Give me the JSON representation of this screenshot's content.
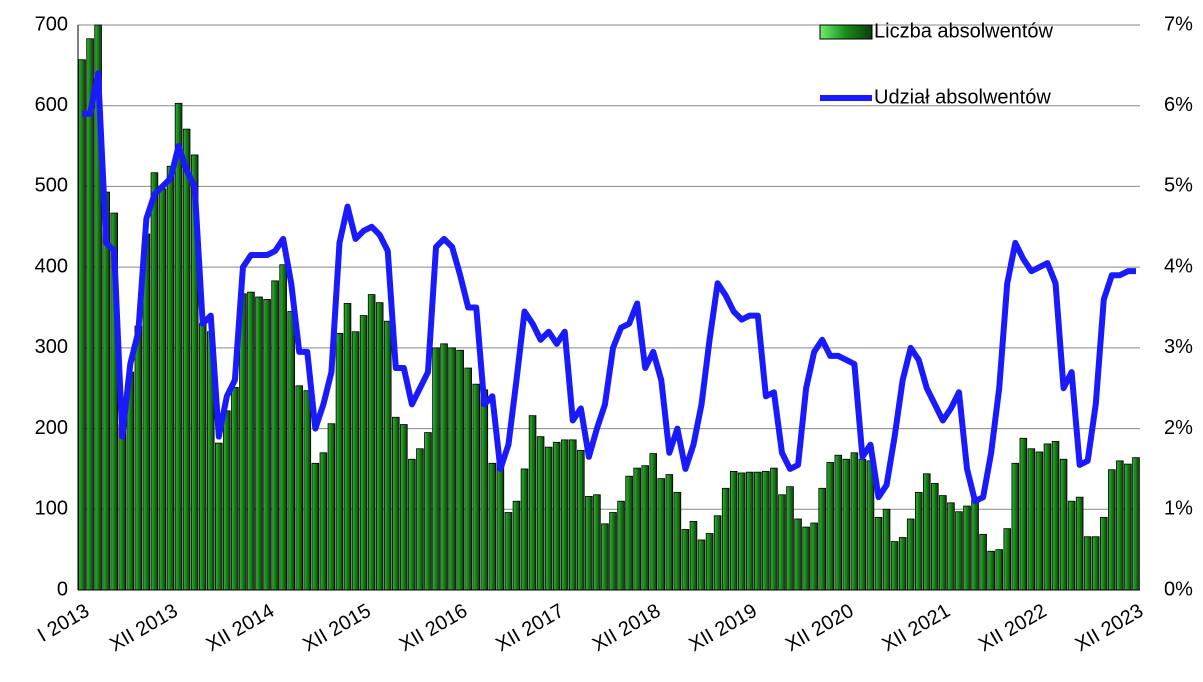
{
  "chart_data": {
    "type": "bar-line",
    "categories": [
      "I 2013",
      null,
      null,
      null,
      null,
      null,
      null,
      null,
      null,
      null,
      null,
      "XII 2013",
      null,
      null,
      null,
      null,
      null,
      null,
      null,
      null,
      null,
      null,
      null,
      "XII 2014",
      null,
      null,
      null,
      null,
      null,
      null,
      null,
      null,
      null,
      null,
      null,
      "XII 2015",
      null,
      null,
      null,
      null,
      null,
      null,
      null,
      null,
      null,
      null,
      null,
      "XII 2016",
      null,
      null,
      null,
      null,
      null,
      null,
      null,
      null,
      null,
      null,
      null,
      "XII 2017",
      null,
      null,
      null,
      null,
      null,
      null,
      null,
      null,
      null,
      null,
      null,
      "XII 2018",
      null,
      null,
      null,
      null,
      null,
      null,
      null,
      null,
      null,
      null,
      null,
      "XII 2019",
      null,
      null,
      null,
      null,
      null,
      null,
      null,
      null,
      null,
      null,
      null,
      "XII 2020",
      null,
      null,
      null,
      null,
      null,
      null,
      null,
      null,
      null,
      null,
      null,
      "XII 2021",
      null,
      null,
      null,
      null,
      null,
      null,
      null,
      null,
      null,
      null,
      null,
      "XII 2022",
      null,
      null,
      null,
      null,
      null,
      null,
      null,
      null,
      null,
      null,
      null,
      "XII 2023"
    ],
    "series": [
      {
        "name": "Liczba absolwentów",
        "type": "bar",
        "color": "#1a8a1a",
        "values": [
          657,
          683,
          700,
          493,
          467,
          205,
          270,
          327,
          441,
          517,
          497,
          525,
          603,
          571,
          539,
          330,
          320,
          182,
          222,
          251,
          367,
          369,
          363,
          360,
          383,
          403,
          345,
          253,
          247,
          157,
          170,
          206,
          318,
          355,
          320,
          340,
          366,
          356,
          333,
          214,
          205,
          162,
          175,
          195,
          300,
          305,
          300,
          297,
          275,
          255,
          248,
          157,
          160,
          96,
          110,
          150,
          216,
          190,
          177,
          183,
          186,
          186,
          173,
          116,
          118,
          82,
          96,
          110,
          141,
          151,
          154,
          169,
          138,
          143,
          121,
          75,
          85,
          62,
          70,
          92,
          126,
          147,
          145,
          146,
          146,
          147,
          151,
          118,
          128,
          88,
          78,
          83,
          126,
          158,
          167,
          162,
          170,
          162,
          160,
          90,
          100,
          60,
          65,
          88,
          121,
          144,
          132,
          117,
          108,
          97,
          104,
          112,
          69,
          48,
          50,
          76,
          157,
          188,
          175,
          171,
          181,
          184,
          162,
          110,
          115,
          66,
          66,
          90,
          149,
          160,
          156,
          164
        ]
      },
      {
        "name": "Udział absolwentów",
        "type": "line",
        "axis": "y2",
        "color": "#1a1aff",
        "values": [
          5.9,
          5.9,
          6.4,
          4.3,
          4.2,
          1.9,
          2.8,
          3.2,
          4.6,
          4.9,
          5.0,
          5.1,
          5.5,
          5.2,
          5.0,
          3.3,
          3.4,
          1.9,
          2.4,
          2.6,
          4.0,
          4.15,
          4.15,
          4.15,
          4.2,
          4.35,
          3.8,
          2.95,
          2.95,
          2.0,
          2.3,
          2.7,
          4.3,
          4.75,
          4.35,
          4.45,
          4.5,
          4.4,
          4.2,
          2.75,
          2.75,
          2.3,
          2.5,
          2.7,
          4.25,
          4.35,
          4.25,
          3.9,
          3.5,
          3.5,
          2.3,
          2.4,
          1.5,
          1.8,
          2.6,
          3.45,
          3.3,
          3.1,
          3.2,
          3.05,
          3.2,
          2.1,
          2.25,
          1.65,
          2.0,
          2.3,
          3.0,
          3.25,
          3.3,
          3.55,
          2.75,
          2.95,
          2.6,
          1.7,
          2.0,
          1.5,
          1.8,
          2.3,
          3.1,
          3.8,
          3.65,
          3.45,
          3.35,
          3.4,
          3.4,
          2.4,
          2.45,
          1.7,
          1.5,
          1.55,
          2.5,
          2.95,
          3.1,
          2.9,
          2.9,
          2.85,
          2.8,
          1.65,
          1.8,
          1.15,
          1.3,
          1.9,
          2.6,
          3.0,
          2.85,
          2.5,
          2.3,
          2.1,
          2.25,
          2.45,
          1.5,
          1.1,
          1.15,
          1.7,
          2.5,
          3.8,
          4.3,
          4.1,
          3.95,
          4.0,
          4.05,
          3.8,
          2.5,
          2.7,
          1.55,
          1.6,
          2.3,
          3.6,
          3.9,
          3.9,
          3.95,
          3.95
        ]
      }
    ],
    "ylim": [
      0,
      700
    ],
    "yticks": [
      0,
      100,
      200,
      300,
      400,
      500,
      600,
      700
    ],
    "y2lim": [
      0,
      7
    ],
    "y2ticks": [
      {
        "value": 0,
        "label": "0%"
      },
      {
        "value": 1,
        "label": "1%"
      },
      {
        "value": 2,
        "label": "2%"
      },
      {
        "value": 3,
        "label": "3%"
      },
      {
        "value": 4,
        "label": "4%"
      },
      {
        "value": 5,
        "label": "5%"
      },
      {
        "value": 6,
        "label": "6%"
      },
      {
        "value": 7,
        "label": "7%"
      }
    ],
    "grid": true,
    "legend": "top-right"
  }
}
